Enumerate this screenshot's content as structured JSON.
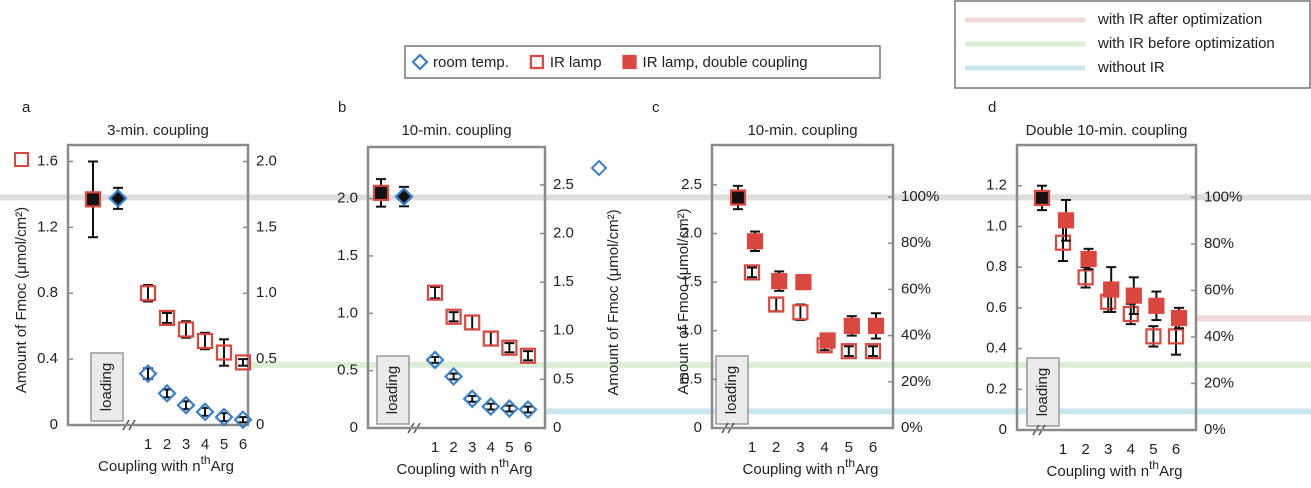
{
  "chart_data": [
    {
      "type": "errorbar",
      "label": "a",
      "title": "3-min. coupling",
      "ylabel": "Amount of Fmoc (μmol/cm²)",
      "xlabel": [
        "Coupling with n",
        "th",
        "Arg"
      ],
      "categories": [
        "loading",
        "1",
        "2",
        "3",
        "4",
        "5",
        "6"
      ],
      "ycolor": "#d9473f",
      "y2color": "#3a7fc8",
      "ylim": [
        0,
        1.7
      ],
      "yticks": [
        0,
        0.4,
        0.8,
        1.2,
        1.6
      ],
      "y2lim": [
        0,
        2.125
      ],
      "y2ticks": [
        0,
        0.5,
        {
          "value": 1,
          "label": "1.0"
        },
        1.5,
        {
          "value": 2,
          "label": "2.0"
        }
      ],
      "series": [
        {
          "name": "room temp.",
          "color": "#3a7fc8",
          "marker": "diamond",
          "filled": false,
          "axis": "y2",
          "values": [
            1.72,
            0.39,
            0.24,
            0.15,
            0.1,
            0.06,
            0.04
          ],
          "errors": [
            0.08,
            0.04,
            0.03,
            0.03,
            0.03,
            0.03,
            0.02
          ]
        },
        {
          "name": "IR lamp",
          "color": "#d9473f",
          "marker": "square",
          "filled": false,
          "values": [
            1.37,
            0.8,
            0.65,
            0.58,
            0.51,
            0.44,
            0.38
          ],
          "errors": [
            0.23,
            0.05,
            0.03,
            0.05,
            0.05,
            0.08,
            0.02
          ]
        }
      ]
    },
    {
      "type": "errorbar",
      "label": "b",
      "title": "10-min. coupling",
      "y2label": "Amount of Fmoc (μmol/cm²)",
      "xlabel": [
        "Coupling with n",
        "th",
        "Arg"
      ],
      "categories": [
        "loading",
        "1",
        "2",
        "3",
        "4",
        "5",
        "6"
      ],
      "ycolor": "#d9473f",
      "y2color": "#3a7fc8",
      "ylim": [
        0,
        2.45
      ],
      "yticks": [
        0,
        0.5,
        {
          "value": 1,
          "label": "1.0"
        },
        1.5,
        {
          "value": 2,
          "label": "2.0"
        }
      ],
      "y2lim": [
        0,
        2.89
      ],
      "y2ticks": [
        0,
        0.5,
        {
          "value": 1,
          "label": "1.0"
        },
        1.5,
        {
          "value": 2,
          "label": "2.0"
        },
        2.5
      ],
      "series": [
        {
          "name": "room temp.",
          "color": "#3a7fc8",
          "marker": "diamond",
          "filled": false,
          "axis": "y2",
          "values": [
            2.38,
            0.7,
            0.53,
            0.3,
            0.22,
            0.2,
            0.19
          ],
          "errors": [
            0.1,
            0.03,
            0.03,
            0.03,
            0.03,
            0.03,
            0.03
          ]
        },
        {
          "name": "IR lamp",
          "color": "#d9473f",
          "marker": "square",
          "filled": false,
          "values": [
            2.05,
            1.18,
            0.97,
            0.92,
            0.78,
            0.7,
            0.63
          ],
          "errors": [
            0.12,
            0.05,
            0.04,
            0.06,
            0.06,
            0.04,
            0.04
          ]
        }
      ]
    },
    {
      "type": "errorbar",
      "label": "c",
      "title": "10-min. coupling",
      "ylabel": "Amount of Fmoc (μmol/cm²)",
      "xlabel": [
        "Coupling with n",
        "th",
        "Arg"
      ],
      "categories": [
        "loading",
        "1",
        "2",
        "3",
        "4",
        "5",
        "6"
      ],
      "ycolor": "#d9473f",
      "y2color": "#2e2a6e",
      "ylim": [
        0,
        2.91
      ],
      "yticks": [
        0,
        0.5,
        {
          "value": 1,
          "label": "1.0"
        },
        1.5,
        {
          "value": 2,
          "label": "2.0"
        },
        2.5
      ],
      "y2lim": [
        0,
        122.5
      ],
      "y2ticks": [
        {
          "value": 0,
          "label": "0%"
        },
        {
          "value": 20,
          "label": "20%"
        },
        {
          "value": 40,
          "label": "40%"
        },
        {
          "value": 60,
          "label": "60%"
        },
        {
          "value": 80,
          "label": "80%"
        },
        {
          "value": 100,
          "label": "100%"
        }
      ],
      "series": [
        {
          "name": "IR lamp",
          "color": "#d9473f",
          "marker": "square",
          "filled": false,
          "values": [
            2.37,
            1.6,
            1.27,
            1.19,
            0.85,
            0.79,
            0.79
          ],
          "errors": [
            0.12,
            0.05,
            0.07,
            0.08,
            0.05,
            0.05,
            0.05
          ]
        },
        {
          "name": "IR lamp, double coupling",
          "color": "#d9473f",
          "marker": "square",
          "filled": true,
          "values": [
            null,
            1.92,
            1.51,
            1.5,
            0.9,
            1.05,
            1.05
          ],
          "errors": [
            null,
            0.1,
            0.1,
            0.07,
            0.05,
            0.1,
            0.13
          ]
        }
      ]
    },
    {
      "type": "errorbar",
      "label": "d",
      "title": "Double 10-min. coupling",
      "xlabel": [
        "Coupling with n",
        "th",
        "Arg"
      ],
      "categories": [
        "loading",
        "1",
        "2",
        "3",
        "4",
        "5",
        "6"
      ],
      "ycolor": "#d9473f",
      "y2color": "#2e2a6e",
      "ylim": [
        0,
        1.4
      ],
      "yticks": [
        0,
        0.2,
        0.4,
        0.6,
        0.8,
        {
          "value": 1,
          "label": "1.0"
        },
        1.2
      ],
      "y2lim": [
        0,
        122.5
      ],
      "y2ticks": [
        {
          "value": 0,
          "label": "0%"
        },
        {
          "value": 20,
          "label": "20%"
        },
        {
          "value": 40,
          "label": "40%"
        },
        {
          "value": 60,
          "label": "60%"
        },
        {
          "value": 80,
          "label": "80%"
        },
        {
          "value": 100,
          "label": "100%"
        }
      ],
      "series": [
        {
          "name": "IR lamp",
          "color": "#d9473f",
          "marker": "square",
          "filled": false,
          "values": [
            1.14,
            0.92,
            0.75,
            0.63,
            0.57,
            0.46,
            0.46
          ],
          "errors": [
            0.06,
            0.09,
            0.05,
            0.05,
            0.05,
            0.05,
            0.09
          ]
        },
        {
          "name": "IR lamp, double coupling",
          "color": "#d9473f",
          "marker": "square",
          "filled": true,
          "values": [
            null,
            1.03,
            0.84,
            0.69,
            0.66,
            0.61,
            0.55
          ],
          "errors": [
            null,
            0.1,
            0.05,
            0.11,
            0.09,
            0.07,
            0.05
          ]
        }
      ],
      "reference_lines": [
        {
          "name": "with IR after optimization",
          "color": "#f2d9d9",
          "value": 48
        },
        {
          "name": "with IR before optimization",
          "color": "#dcefd6",
          "value": 28
        },
        {
          "name": "without IR",
          "color": "#cbe7ee",
          "value": 8
        },
        {
          "color": "#dedede",
          "value": 100
        }
      ]
    }
  ]
}
